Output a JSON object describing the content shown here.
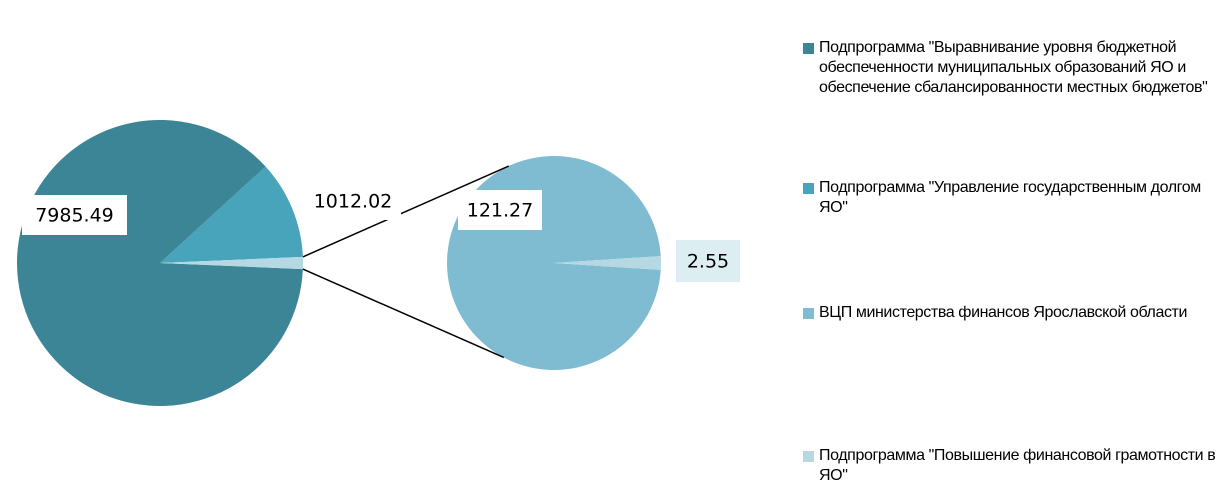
{
  "chart_data": {
    "type": "pie-of-pie",
    "categories": [
      "Подпрограмма \"Выравнивание уровня бюджетной обеспеченности муниципальных образований ЯО и обеспечение сбалансированности местных бюджетов\"",
      "Подпрограмма \"Управление государственным долгом ЯО\"",
      "ВЦП министерства финансов Ярославской области",
      "Подпрограмма \"Повышение финансовой грамотности в ЯО\""
    ],
    "values": [
      7985.49,
      1012.02,
      121.27,
      2.55
    ],
    "colors": [
      "#3b8597",
      "#47a4bb",
      "#7fbbd1",
      "#b5d8e3"
    ],
    "legend": "right"
  }
}
